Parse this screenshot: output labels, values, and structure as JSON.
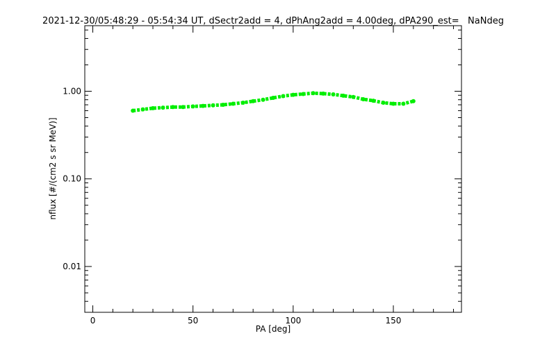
{
  "chart_data": {
    "type": "scatter",
    "title": "2021-12-30/05:48:29 - 05:54:34 UT, dSectr2add = 4, dPhAng2add = 4.00deg, dPA290_est=   NaNdeg",
    "xlabel": "PA [deg]",
    "ylabel": "nflux [#/(cm2 s sr MeV)]",
    "xlim": [
      -4,
      184
    ],
    "ylim": [
      0.003,
      5.6
    ],
    "yscale": "log",
    "grid": false,
    "x_ticks": [
      0,
      50,
      100,
      150
    ],
    "x_tick_labels": [
      "0",
      "50",
      "100",
      "150"
    ],
    "y_ticks": [
      0.01,
      0.1,
      1.0
    ],
    "y_tick_labels": [
      "0.01",
      "0.10",
      "1.00"
    ],
    "series": [
      {
        "color": "#00ee00",
        "x": [
          20,
          25,
          30,
          35,
          40,
          45,
          50,
          55,
          60,
          65,
          70,
          75,
          80,
          85,
          90,
          95,
          100,
          105,
          110,
          115,
          120,
          125,
          130,
          135,
          140,
          145,
          150,
          155,
          160
        ],
        "y": [
          0.6,
          0.62,
          0.64,
          0.65,
          0.66,
          0.66,
          0.67,
          0.68,
          0.69,
          0.7,
          0.72,
          0.74,
          0.77,
          0.8,
          0.84,
          0.88,
          0.91,
          0.93,
          0.95,
          0.94,
          0.92,
          0.89,
          0.86,
          0.81,
          0.78,
          0.74,
          0.72,
          0.72,
          0.77
        ]
      }
    ]
  }
}
